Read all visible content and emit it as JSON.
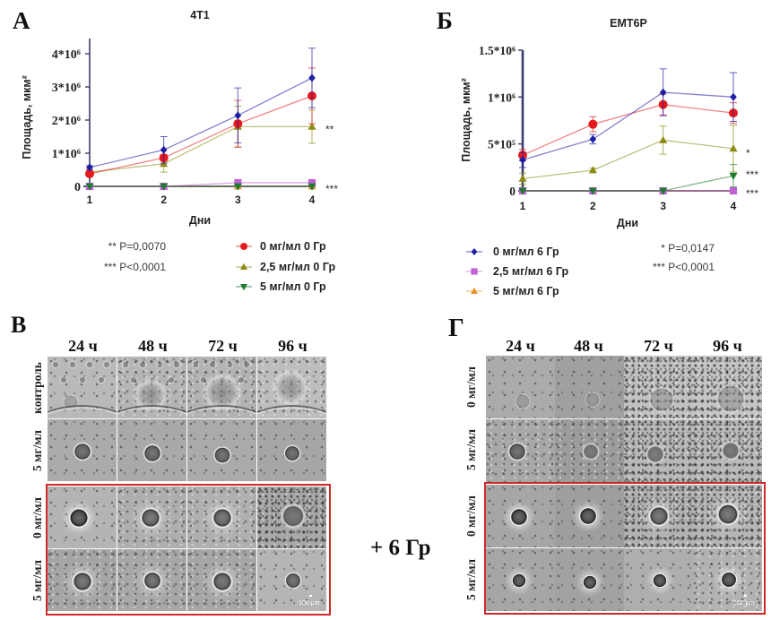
{
  "chart_data": [
    {
      "panel_label": "А",
      "type": "line",
      "title": "4T1",
      "xlabel": "Дни",
      "ylabel": "Площадь, мкм²",
      "x": [
        1,
        2,
        3,
        4
      ],
      "xticks": [
        "1",
        "2",
        "3",
        "4"
      ],
      "ylim": [
        0,
        4450000
      ],
      "yticks": [
        {
          "value": 0,
          "label": "0"
        },
        {
          "value": 1000000,
          "label": "1*10⁶"
        },
        {
          "value": 2000000,
          "label": "2*10⁶"
        },
        {
          "value": 3000000,
          "label": "3*10⁶"
        },
        {
          "value": 4000000,
          "label": "4*10⁶"
        }
      ],
      "grid": false,
      "legend": "bottom",
      "series": [
        {
          "name": "0 мг/мл 6 Гр",
          "color": "#1f1fa6",
          "marker": "diamond",
          "values": [
            570000,
            1100000,
            2140000,
            3270000
          ],
          "errors": [
            60000,
            400000,
            830000,
            900000
          ]
        },
        {
          "name": "0 мг/мл 0 Гр",
          "color": "#e41a1c",
          "marker": "circle",
          "values": [
            380000,
            860000,
            1890000,
            2730000
          ],
          "errors": [
            60000,
            100000,
            700000,
            840000
          ]
        },
        {
          "name": "2,5 мг/мл 0 Гр",
          "color": "#8c8c14",
          "marker": "triangle-up",
          "values": [
            430000,
            680000,
            1800000,
            1800000
          ],
          "errors": [
            50000,
            250000,
            620000,
            500000
          ]
        },
        {
          "name": "5 мг/мл 0 Гр",
          "color": "#1e7a2e",
          "marker": "triangle-down",
          "values": [
            0,
            0,
            0,
            0
          ],
          "errors": [
            0,
            0,
            0,
            0
          ]
        },
        {
          "name": "2,5 мг/мл 6 Гр",
          "color": "#c060d6",
          "marker": "square",
          "values": [
            0,
            0,
            110000,
            110000
          ],
          "errors": [
            0,
            0,
            0,
            0
          ]
        },
        {
          "name": "5 мг/мл 6 Гр",
          "color": "#e8902a",
          "marker": "triangle-up",
          "values": [
            0,
            0,
            0,
            0
          ],
          "errors": [
            0,
            0,
            0,
            0
          ]
        }
      ],
      "annotations": [
        {
          "text": "**",
          "y": 1800000
        },
        {
          "text": "***",
          "y": 0
        }
      ]
    },
    {
      "panel_label": "Б",
      "type": "line",
      "title": "EMT6P",
      "xlabel": "Дни",
      "ylabel": "Площадь, мкм²",
      "x": [
        1,
        2,
        3,
        4
      ],
      "xticks": [
        "1",
        "2",
        "3",
        "4"
      ],
      "ylim": [
        0,
        1500000
      ],
      "yticks": [
        {
          "value": 0,
          "label": "0"
        },
        {
          "value": 500000,
          "label": "5*10⁵"
        },
        {
          "value": 1000000,
          "label": "1*10⁶"
        },
        {
          "value": 1500000,
          "label": "1.5*10⁶"
        }
      ],
      "grid": false,
      "legend": "bottom",
      "series": [
        {
          "name": "0 мг/мл 6 Гр",
          "color": "#1f1fa6",
          "marker": "diamond",
          "values": [
            330000,
            550000,
            1050000,
            1000000
          ],
          "errors": [
            80000,
            50000,
            250000,
            260000
          ]
        },
        {
          "name": "0 мг/мл 0 Гр",
          "color": "#e41a1c",
          "marker": "circle",
          "values": [
            380000,
            710000,
            920000,
            830000
          ],
          "errors": [
            60000,
            80000,
            110000,
            110000
          ]
        },
        {
          "name": "2,5 мг/мл 0 Гр",
          "color": "#8c8c14",
          "marker": "triangle-up",
          "values": [
            130000,
            220000,
            540000,
            450000
          ],
          "errors": [
            60000,
            20000,
            150000,
            250000
          ]
        },
        {
          "name": "5 мг/мл 0 Гр",
          "color": "#1e7a2e",
          "marker": "triangle-down",
          "values": [
            0,
            0,
            0,
            160000
          ],
          "errors": [
            0,
            0,
            0,
            120000
          ]
        },
        {
          "name": "2,5 мг/мл 6 Гр",
          "color": "#c060d6",
          "marker": "square",
          "values": [
            0,
            0,
            0,
            0
          ],
          "errors": [
            0,
            0,
            0,
            0
          ]
        },
        {
          "name": "5 мг/мл 6 Гр",
          "color": "#e8902a",
          "marker": "triangle-up",
          "values": [
            0,
            0,
            0,
            0
          ],
          "errors": [
            0,
            0,
            0,
            0
          ]
        }
      ],
      "annotations": [
        {
          "text": "*",
          "y": 430000
        },
        {
          "text": "***",
          "y": 200000
        },
        {
          "text": "***",
          "y": 0
        }
      ]
    }
  ],
  "legends": {
    "left": {
      "items": [
        {
          "label": "0 мг/мл 0 Гр",
          "marker": "circle",
          "color": "#e41a1c"
        },
        {
          "label": "2,5 мг/мл 0 Гр",
          "marker": "triangle-up",
          "color": "#8c8c14"
        },
        {
          "label": "5 мг/мл 0 Гр",
          "marker": "triangle-down",
          "color": "#1e7a2e"
        }
      ],
      "pvalues": [
        "** P=0,0070",
        "*** P<0,0001"
      ]
    },
    "right": {
      "items": [
        {
          "label": "0 мг/мл 6 Гр",
          "marker": "diamond",
          "color": "#1f1fa6"
        },
        {
          "label": "2,5 мг/мл 6 Гр",
          "marker": "square",
          "color": "#c060d6"
        },
        {
          "label": "5 мг/мл 6 Гр",
          "marker": "triangle-up",
          "color": "#e8902a"
        }
      ],
      "pvalues": [
        "* P=0,0147",
        "*** P<0,0001"
      ]
    }
  },
  "micrographs": {
    "panel_v": {
      "label": "В",
      "columns": [
        "24 ч",
        "48 ч",
        "72 ч",
        "96 ч"
      ],
      "rows": [
        "контроль",
        "5 мг/мл",
        "0 мг/мл",
        "5 мг/мл"
      ],
      "scale_bar": "100 μm"
    },
    "panel_g": {
      "label": "Г",
      "columns": [
        "24 ч",
        "48 ч",
        "72 ч",
        "96 ч"
      ],
      "rows": [
        "0 мг/мл",
        "5 мг/мл",
        "0 мг/мл",
        "5 мг/мл"
      ],
      "scale_bar": "100 μm"
    },
    "irradiation_label": "+ 6 Гр"
  },
  "colors": {
    "highlight_box": "#cf2a2a"
  }
}
